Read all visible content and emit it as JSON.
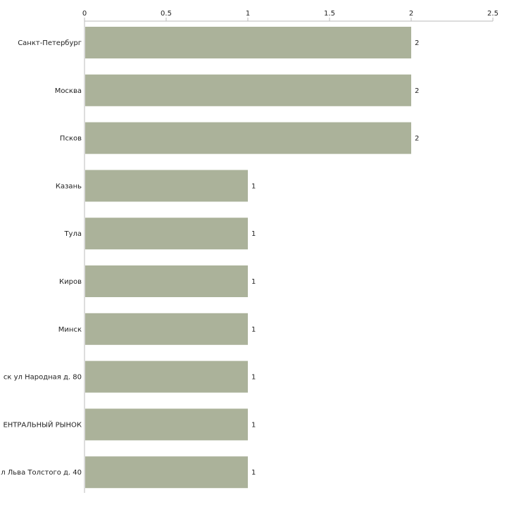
{
  "chart_data": {
    "type": "bar",
    "orientation": "horizontal",
    "title": "",
    "xlabel": "",
    "ylabel": "",
    "xlim": [
      0,
      2.5
    ],
    "x_ticks": [
      "0",
      "0.5",
      "1",
      "1.5",
      "2",
      "2.5"
    ],
    "grid": false,
    "legend": "none",
    "bar_color": "#abb29a",
    "categories": [
      "Санкт-Петербург",
      "Москва",
      "Псков",
      "Казань",
      "Тула",
      "Киров",
      "Минск",
      "ск ул Народная д. 80",
      "ЕНТРАЛЬНЫЙ РЫНОК",
      "л Льва Толстого д. 40"
    ],
    "values": [
      2,
      2,
      2,
      1,
      1,
      1,
      1,
      1,
      1,
      1
    ],
    "data_labels": [
      "2",
      "2",
      "2",
      "1",
      "1",
      "1",
      "1",
      "1",
      "1",
      "1"
    ]
  }
}
